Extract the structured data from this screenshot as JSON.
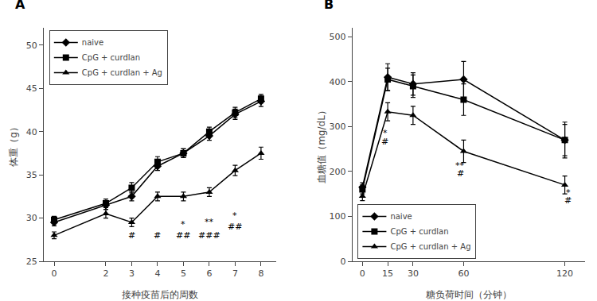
{
  "chart_data": [
    {
      "type": "line",
      "title": "A",
      "xlabel": "接种疫苗后的周数",
      "ylabel": "体重（g）",
      "xlim": [
        -0.4,
        8.6
      ],
      "ylim": [
        25,
        52
      ],
      "xticks": [
        0,
        2,
        3,
        4,
        5,
        6,
        7,
        8
      ],
      "yticks": [
        25,
        30,
        35,
        40,
        45,
        50
      ],
      "grid": false,
      "legend": "upper left",
      "x": [
        0,
        2,
        3,
        4,
        5,
        6,
        7,
        8
      ],
      "series": [
        {
          "name": "naive",
          "color": "#000000",
          "marker": "diamond",
          "values": [
            29.5,
            31.5,
            32.5,
            36.0,
            37.5,
            39.5,
            42.0,
            43.5
          ],
          "yerr": [
            0.4,
            0.5,
            0.5,
            0.5,
            0.5,
            0.5,
            0.6,
            0.6
          ]
        },
        {
          "name": "CpG + curdlan",
          "color": "#000000",
          "marker": "square",
          "values": [
            29.8,
            31.7,
            33.5,
            36.5,
            37.5,
            40.0,
            42.2,
            43.8
          ],
          "yerr": [
            0.4,
            0.5,
            0.6,
            0.6,
            0.5,
            0.5,
            0.6,
            0.5
          ]
        },
        {
          "name": "CpG + curdlan + Ag",
          "color": "#000000",
          "marker": "triangle-up",
          "values": [
            28.0,
            30.5,
            29.5,
            32.5,
            32.5,
            33.0,
            35.5,
            37.5
          ],
          "yerr": [
            0.4,
            0.5,
            0.5,
            0.5,
            0.5,
            0.5,
            0.6,
            0.7
          ]
        }
      ],
      "annotations": [
        {
          "x": 3.0,
          "y": 27.2,
          "text": "#"
        },
        {
          "x": 4.0,
          "y": 27.2,
          "text": "#"
        },
        {
          "x": 5.0,
          "y": 28.5,
          "text": "*"
        },
        {
          "x": 5.0,
          "y": 27.2,
          "text": "##"
        },
        {
          "x": 6.0,
          "y": 28.8,
          "text": "**"
        },
        {
          "x": 6.0,
          "y": 27.2,
          "text": "###"
        },
        {
          "x": 7.0,
          "y": 29.5,
          "text": "*"
        },
        {
          "x": 7.0,
          "y": 28.2,
          "text": "##"
        }
      ]
    },
    {
      "type": "line",
      "title": "B",
      "xlabel": "糖负荷时间（分钟）",
      "ylabel": "血糖值（mg/dL）",
      "xlim": [
        -6,
        132
      ],
      "ylim": [
        0,
        520
      ],
      "xticks": [
        0,
        15,
        30,
        60,
        120
      ],
      "yticks": [
        0,
        100,
        200,
        300,
        400,
        500
      ],
      "grid": false,
      "legend": "lower left",
      "x": [
        0,
        15,
        30,
        60,
        120
      ],
      "series": [
        {
          "name": "naive",
          "color": "#000000",
          "marker": "diamond",
          "values": [
            165,
            410,
            395,
            405,
            270
          ],
          "yerr": [
            10,
            30,
            25,
            40,
            35
          ]
        },
        {
          "name": "CpG + curdlan",
          "color": "#000000",
          "marker": "square",
          "values": [
            160,
            405,
            390,
            360,
            270
          ],
          "yerr": [
            10,
            25,
            25,
            35,
            40
          ]
        },
        {
          "name": "CpG + curdlan + Ag",
          "color": "#000000",
          "marker": "triangle-up",
          "values": [
            145,
            333,
            325,
            245,
            170
          ],
          "yerr": [
            10,
            20,
            20,
            25,
            20
          ]
        }
      ],
      "annotations": [
        {
          "x": 13.5,
          "y": 270,
          "text": "*"
        },
        {
          "x": 13.5,
          "y": 252,
          "text": "#"
        },
        {
          "x": 58,
          "y": 198,
          "text": "**"
        },
        {
          "x": 58,
          "y": 180,
          "text": "#"
        },
        {
          "x": 122,
          "y": 138,
          "text": "*"
        },
        {
          "x": 122,
          "y": 120,
          "text": "#"
        }
      ]
    }
  ]
}
